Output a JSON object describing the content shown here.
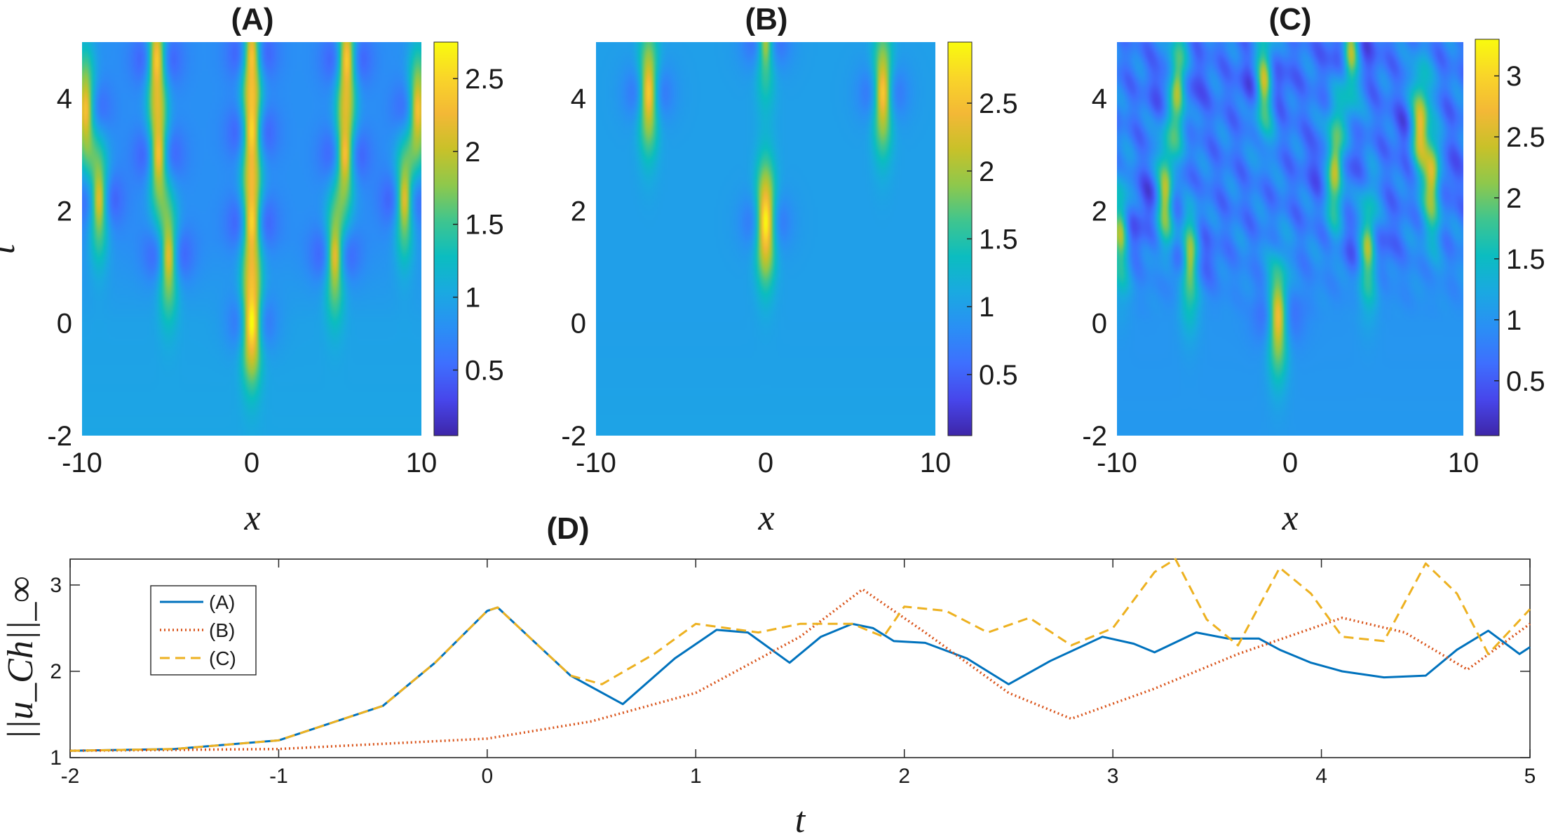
{
  "colormap": [
    "#3e26a8",
    "#4746eb",
    "#3e6ffe",
    "#2a8ff5",
    "#1aa9e1",
    "#0bbdc0",
    "#3fc58f",
    "#8ec84c",
    "#c8c129",
    "#f3b836",
    "#f9d529",
    "#f9fb0e"
  ],
  "chart_data": [
    {
      "id": "A",
      "type": "heatmap",
      "title": "(A)",
      "xlabel": "x",
      "ylabel": "t",
      "xlim": [
        -10,
        10
      ],
      "ylim": [
        -2,
        5
      ],
      "xticks": [
        "-10",
        "0",
        "10"
      ],
      "yticks": [
        "-2",
        "0",
        "2",
        "4"
      ],
      "clim": [
        0.05,
        2.75
      ],
      "colorbar_ticks": [
        "0.5",
        "1",
        "1.5",
        "2",
        "2.5"
      ],
      "colorbar_tick_values": [
        0.5,
        1,
        1.5,
        2,
        2.5
      ],
      "background": 0.95,
      "peaks": [
        {
          "x": 0.0,
          "t": 0.0,
          "amp": 2.75
        },
        {
          "x": 0.0,
          "t": 1.8,
          "amp": 2.5
        },
        {
          "x": 0.0,
          "t": 3.4,
          "amp": 2.4
        },
        {
          "x": 0.0,
          "t": 4.8,
          "amp": 2.3
        },
        {
          "x": -4.9,
          "t": 1.2,
          "amp": 2.3
        },
        {
          "x": 4.9,
          "t": 1.2,
          "amp": 2.3
        },
        {
          "x": -5.5,
          "t": 3.0,
          "amp": 2.4
        },
        {
          "x": 5.5,
          "t": 3.0,
          "amp": 2.4
        },
        {
          "x": -5.6,
          "t": 4.7,
          "amp": 2.5
        },
        {
          "x": 5.6,
          "t": 4.7,
          "amp": 2.5
        },
        {
          "x": -9.0,
          "t": 2.2,
          "amp": 2.3
        },
        {
          "x": 9.0,
          "t": 2.2,
          "amp": 2.3
        },
        {
          "x": -9.8,
          "t": 3.8,
          "amp": 2.5
        },
        {
          "x": 9.8,
          "t": 3.8,
          "amp": 2.5
        }
      ]
    },
    {
      "id": "B",
      "type": "heatmap",
      "title": "(B)",
      "xlabel": "x",
      "ylabel": "",
      "xlim": [
        -10,
        10
      ],
      "ylim": [
        -2,
        5
      ],
      "xticks": [
        "-10",
        "0",
        "10"
      ],
      "yticks": [
        "-2",
        "0",
        "2",
        "4"
      ],
      "clim": [
        0.05,
        2.95
      ],
      "colorbar_ticks": [
        "0.5",
        "1",
        "1.5",
        "2",
        "2.5"
      ],
      "colorbar_tick_values": [
        0.5,
        1,
        1.5,
        2,
        2.5
      ],
      "background": 1.0,
      "peaks": [
        {
          "x": 0.0,
          "t": 1.8,
          "amp": 2.95
        },
        {
          "x": -6.9,
          "t": 4.1,
          "amp": 2.6
        },
        {
          "x": 6.9,
          "t": 4.1,
          "amp": 2.6
        },
        {
          "x": 0.0,
          "t": 5.0,
          "amp": 2.0
        }
      ]
    },
    {
      "id": "C",
      "type": "heatmap",
      "title": "(C)",
      "xlabel": "x",
      "ylabel": "",
      "xlim": [
        -10,
        10
      ],
      "ylim": [
        -2,
        5
      ],
      "xticks": [
        "-10",
        "0",
        "10"
      ],
      "yticks": [
        "-2",
        "0",
        "2",
        "4"
      ],
      "clim": [
        0.05,
        3.3
      ],
      "colorbar_ticks": [
        "0.5",
        "1",
        "1.5",
        "2",
        "2.5",
        "3"
      ],
      "colorbar_tick_values": [
        0.5,
        1,
        1.5,
        2,
        2.5,
        3
      ],
      "background": 1.0,
      "peaks": [
        {
          "x": -0.7,
          "t": 0.1,
          "amp": 2.75
        },
        {
          "x": -7.2,
          "t": 2.3,
          "amp": 2.6
        },
        {
          "x": -5.8,
          "t": 1.1,
          "amp": 2.4
        },
        {
          "x": -9.8,
          "t": 1.6,
          "amp": 2.3
        },
        {
          "x": 2.6,
          "t": 2.8,
          "amp": 2.7
        },
        {
          "x": 4.5,
          "t": 1.4,
          "amp": 2.4
        },
        {
          "x": 7.5,
          "t": 3.5,
          "amp": 2.8
        },
        {
          "x": 8.2,
          "t": 2.6,
          "amp": 2.7
        },
        {
          "x": -6.5,
          "t": 4.2,
          "amp": 2.6
        },
        {
          "x": -1.5,
          "t": 4.3,
          "amp": 2.5
        },
        {
          "x": 3.5,
          "t": 4.8,
          "amp": 2.4
        }
      ]
    },
    {
      "id": "D",
      "type": "line",
      "title": "(D)",
      "xlabel": "t",
      "ylabel": "||u_Ch||_∞",
      "xlim": [
        -2,
        5
      ],
      "ylim": [
        1,
        3.3
      ],
      "xticks": [
        "-2",
        "-1",
        "0",
        "1",
        "2",
        "3",
        "4",
        "5"
      ],
      "yticks": [
        "1",
        "2",
        "3"
      ],
      "legend_position": "top-left",
      "series": [
        {
          "name": "(A)",
          "color": "#0072bd",
          "dash": "solid",
          "x": [
            -2,
            -1.5,
            -1,
            -0.5,
            -0.25,
            0,
            0.05,
            0.2,
            0.4,
            0.65,
            0.9,
            1.1,
            1.25,
            1.45,
            1.6,
            1.75,
            1.85,
            1.95,
            2.1,
            2.3,
            2.5,
            2.7,
            2.95,
            3.1,
            3.2,
            3.4,
            3.55,
            3.7,
            3.8,
            3.95,
            4.1,
            4.3,
            4.5,
            4.65,
            4.8,
            4.95,
            5.0
          ],
          "y": [
            1.08,
            1.1,
            1.2,
            1.6,
            2.1,
            2.7,
            2.74,
            2.4,
            1.95,
            1.62,
            2.15,
            2.48,
            2.45,
            2.1,
            2.4,
            2.55,
            2.5,
            2.35,
            2.33,
            2.15,
            1.85,
            2.12,
            2.4,
            2.32,
            2.22,
            2.45,
            2.38,
            2.38,
            2.25,
            2.1,
            2.0,
            1.93,
            1.95,
            2.25,
            2.47,
            2.2,
            2.28
          ]
        },
        {
          "name": "(B)",
          "color": "#d95319",
          "dash": "dotted",
          "x": [
            -2,
            -1,
            0,
            0.5,
            1,
            1.5,
            1.8,
            2.1,
            2.5,
            2.8,
            3.2,
            3.6,
            4.1,
            4.4,
            4.7,
            5.0
          ],
          "y": [
            1.08,
            1.1,
            1.22,
            1.42,
            1.75,
            2.4,
            2.95,
            2.45,
            1.75,
            1.45,
            1.8,
            2.2,
            2.62,
            2.45,
            2.02,
            2.55
          ]
        },
        {
          "name": "(C)",
          "color": "#edb120",
          "dash": "dashed",
          "x": [
            -2,
            -1.5,
            -1,
            -0.5,
            -0.25,
            0,
            0.05,
            0.2,
            0.4,
            0.55,
            0.8,
            1.0,
            1.15,
            1.3,
            1.5,
            1.75,
            1.9,
            2.0,
            2.2,
            2.4,
            2.6,
            2.8,
            3.0,
            3.2,
            3.3,
            3.45,
            3.6,
            3.8,
            3.95,
            4.1,
            4.3,
            4.5,
            4.65,
            4.8,
            5.0
          ],
          "y": [
            1.08,
            1.1,
            1.2,
            1.6,
            2.1,
            2.7,
            2.74,
            2.4,
            1.95,
            1.85,
            2.2,
            2.55,
            2.5,
            2.45,
            2.55,
            2.55,
            2.4,
            2.75,
            2.7,
            2.45,
            2.62,
            2.3,
            2.5,
            3.15,
            3.3,
            2.6,
            2.3,
            3.2,
            2.9,
            2.4,
            2.35,
            3.25,
            2.9,
            2.2,
            2.72
          ]
        }
      ]
    }
  ]
}
